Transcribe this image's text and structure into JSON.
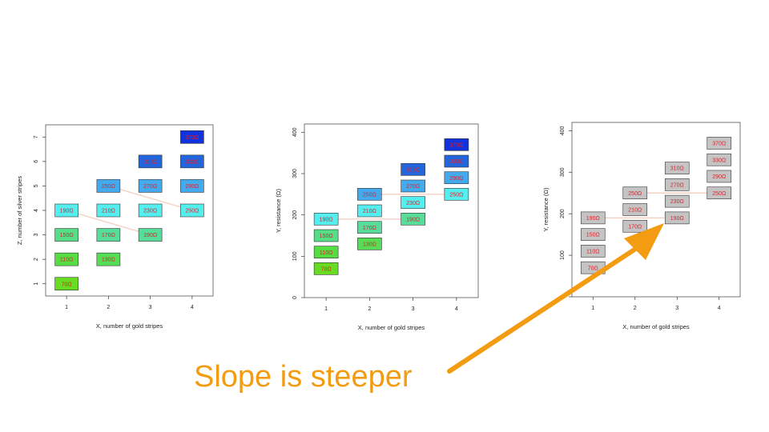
{
  "caption": "Slope is steeper",
  "colors": {
    "caption": "#f39c12",
    "arrow": "#f39c12",
    "label_text": "#e0202a",
    "gray_box": "#c4c4c4",
    "trend_line": "#f3d2c4"
  },
  "chart_data": [
    {
      "type": "scatter",
      "title": "",
      "xlabel": "X, number of gold stripes",
      "ylabel": "Z, number of silver stripes",
      "xlim": [
        0.5,
        4.5
      ],
      "ylim": [
        0.5,
        7.5
      ],
      "x_ticks": [
        1,
        2,
        3,
        4
      ],
      "y_ticks": [
        1,
        2,
        3,
        4,
        5,
        6,
        7
      ],
      "points": [
        {
          "x": 1,
          "y": 1,
          "label": "70Ω",
          "color": "#66dd22"
        },
        {
          "x": 1,
          "y": 2,
          "label": "110Ω",
          "color": "#55dd44"
        },
        {
          "x": 1,
          "y": 3,
          "label": "150Ω",
          "color": "#55dd88"
        },
        {
          "x": 1,
          "y": 4,
          "label": "190Ω",
          "color": "#55eeee"
        },
        {
          "x": 2,
          "y": 2,
          "label": "130Ω",
          "color": "#55dd55"
        },
        {
          "x": 2,
          "y": 3,
          "label": "170Ω",
          "color": "#55dd99"
        },
        {
          "x": 2,
          "y": 4,
          "label": "210Ω",
          "color": "#55eeee"
        },
        {
          "x": 2,
          "y": 5,
          "label": "250Ω",
          "color": "#44aaee"
        },
        {
          "x": 3,
          "y": 3,
          "label": "190Ω",
          "color": "#55dd99"
        },
        {
          "x": 3,
          "y": 4,
          "label": "230Ω",
          "color": "#55eeee"
        },
        {
          "x": 3,
          "y": 5,
          "label": "270Ω",
          "color": "#44aaee"
        },
        {
          "x": 3,
          "y": 6,
          "label": "310Ω",
          "color": "#2266dd"
        },
        {
          "x": 4,
          "y": 4,
          "label": "250Ω",
          "color": "#55eeee"
        },
        {
          "x": 4,
          "y": 5,
          "label": "290Ω",
          "color": "#44aaee"
        },
        {
          "x": 4,
          "y": 6,
          "label": "330Ω",
          "color": "#2266dd"
        },
        {
          "x": 4,
          "y": 7,
          "label": "370Ω",
          "color": "#1133dd"
        }
      ],
      "trend_lines": [
        [
          [
            1,
            4
          ],
          [
            3,
            3
          ]
        ],
        [
          [
            2,
            5
          ],
          [
            4,
            4
          ]
        ]
      ]
    },
    {
      "type": "scatter",
      "title": "",
      "xlabel": "X, number of gold stripes",
      "ylabel": "Y, resistance (Ω)",
      "xlim": [
        0.5,
        4.5
      ],
      "ylim": [
        0,
        420
      ],
      "x_ticks": [
        1,
        2,
        3,
        4
      ],
      "y_ticks": [
        0,
        100,
        200,
        300,
        400
      ],
      "points": [
        {
          "x": 1,
          "y": 70,
          "label": "70Ω",
          "color": "#66dd22"
        },
        {
          "x": 1,
          "y": 110,
          "label": "110Ω",
          "color": "#55dd44"
        },
        {
          "x": 1,
          "y": 150,
          "label": "150Ω",
          "color": "#55dd88"
        },
        {
          "x": 1,
          "y": 190,
          "label": "190Ω",
          "color": "#55eeee"
        },
        {
          "x": 2,
          "y": 130,
          "label": "130Ω",
          "color": "#55dd55"
        },
        {
          "x": 2,
          "y": 170,
          "label": "170Ω",
          "color": "#55dd99"
        },
        {
          "x": 2,
          "y": 210,
          "label": "210Ω",
          "color": "#55eeee"
        },
        {
          "x": 2,
          "y": 250,
          "label": "250Ω",
          "color": "#44aaee"
        },
        {
          "x": 3,
          "y": 190,
          "label": "190Ω",
          "color": "#55dd99"
        },
        {
          "x": 3,
          "y": 230,
          "label": "230Ω",
          "color": "#55eeee"
        },
        {
          "x": 3,
          "y": 270,
          "label": "270Ω",
          "color": "#44aaee"
        },
        {
          "x": 3,
          "y": 310,
          "label": "310Ω",
          "color": "#2266dd"
        },
        {
          "x": 4,
          "y": 250,
          "label": "250Ω",
          "color": "#55eeee"
        },
        {
          "x": 4,
          "y": 290,
          "label": "290Ω",
          "color": "#44aaee"
        },
        {
          "x": 4,
          "y": 330,
          "label": "330Ω",
          "color": "#2266dd"
        },
        {
          "x": 4,
          "y": 370,
          "label": "370Ω",
          "color": "#1133dd"
        }
      ],
      "trend_lines": [
        [
          [
            1,
            190
          ],
          [
            3,
            190
          ]
        ],
        [
          [
            2,
            250
          ],
          [
            4,
            250
          ]
        ]
      ]
    },
    {
      "type": "scatter",
      "title": "",
      "xlabel": "X, number of gold stripes",
      "ylabel": "Y, resistance (Ω)",
      "xlim": [
        0.5,
        4.5
      ],
      "ylim": [
        0,
        420
      ],
      "x_ticks": [
        1,
        2,
        3,
        4
      ],
      "y_ticks": [
        0,
        100,
        200,
        300,
        400
      ],
      "points": [
        {
          "x": 1,
          "y": 70,
          "label": "70Ω",
          "color": "#c4c4c4"
        },
        {
          "x": 1,
          "y": 110,
          "label": "110Ω",
          "color": "#c4c4c4"
        },
        {
          "x": 1,
          "y": 150,
          "label": "150Ω",
          "color": "#c4c4c4"
        },
        {
          "x": 1,
          "y": 190,
          "label": "190Ω",
          "color": "#c4c4c4"
        },
        {
          "x": 2,
          "y": 170,
          "label": "170Ω",
          "color": "#c4c4c4"
        },
        {
          "x": 2,
          "y": 210,
          "label": "210Ω",
          "color": "#c4c4c4"
        },
        {
          "x": 2,
          "y": 250,
          "label": "250Ω",
          "color": "#c4c4c4"
        },
        {
          "x": 3,
          "y": 190,
          "label": "190Ω",
          "color": "#c4c4c4"
        },
        {
          "x": 3,
          "y": 230,
          "label": "230Ω",
          "color": "#c4c4c4"
        },
        {
          "x": 3,
          "y": 270,
          "label": "270Ω",
          "color": "#c4c4c4"
        },
        {
          "x": 3,
          "y": 310,
          "label": "310Ω",
          "color": "#c4c4c4"
        },
        {
          "x": 4,
          "y": 250,
          "label": "250Ω",
          "color": "#c4c4c4"
        },
        {
          "x": 4,
          "y": 290,
          "label": "290Ω",
          "color": "#c4c4c4"
        },
        {
          "x": 4,
          "y": 330,
          "label": "330Ω",
          "color": "#c4c4c4"
        },
        {
          "x": 4,
          "y": 370,
          "label": "370Ω",
          "color": "#c4c4c4"
        }
      ],
      "trend_lines": [
        [
          [
            1,
            190
          ],
          [
            3,
            190
          ]
        ],
        [
          [
            2,
            250
          ],
          [
            4,
            250
          ]
        ]
      ]
    }
  ]
}
